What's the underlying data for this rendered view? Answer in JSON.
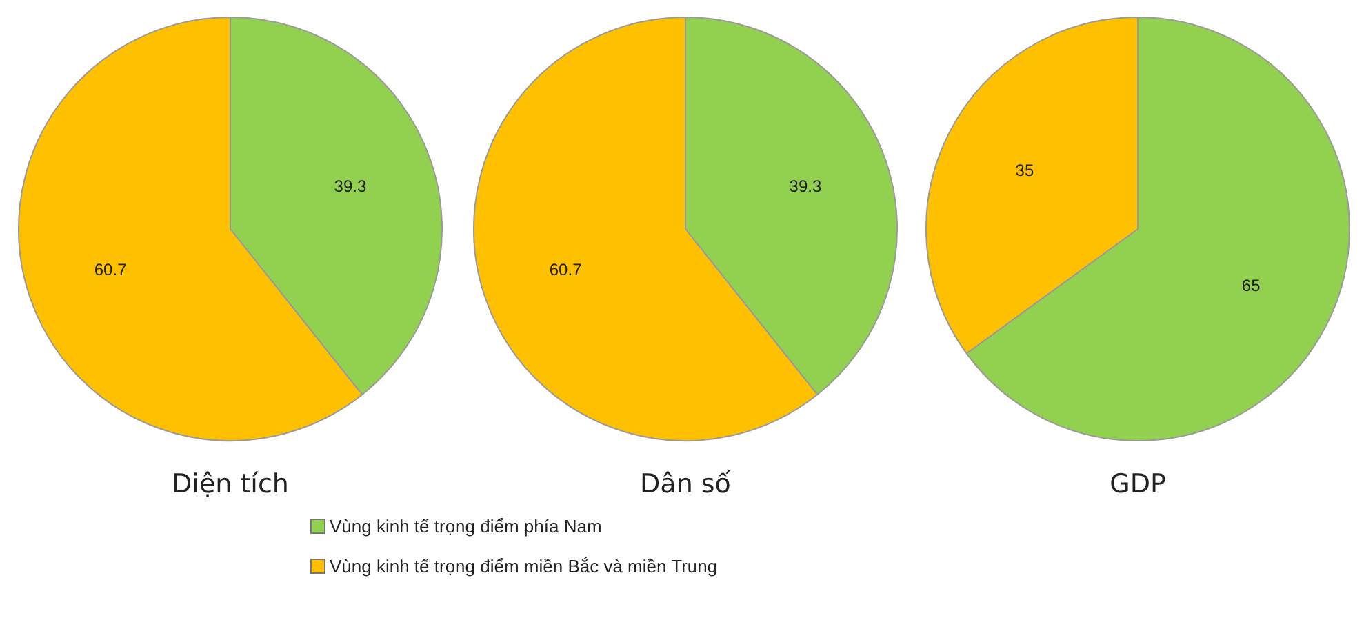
{
  "chart_data": [
    {
      "type": "pie",
      "title": "Diện tích",
      "categories": [
        null,
        null
      ],
      "values": [
        39.3,
        60.7
      ],
      "colors": [
        "#92d050",
        "#ffc000"
      ],
      "data_labels": true
    },
    {
      "type": "pie",
      "title": "Dân số",
      "categories": [
        "Vùng kinh tế trọng điểm phía Nam",
        "Vùng kinh tế trọng điểm miền Bắc và miền Trung"
      ],
      "values": [
        39.3,
        60.7
      ],
      "colors": [
        "#92d050",
        "#ffc000"
      ],
      "data_labels": true,
      "legend": "bottom"
    },
    {
      "type": "pie",
      "title": "GDP",
      "categories": [
        null,
        null
      ],
      "values": [
        65,
        35
      ],
      "colors": [
        "#92d050",
        "#ffc000"
      ],
      "data_labels": true
    }
  ]
}
